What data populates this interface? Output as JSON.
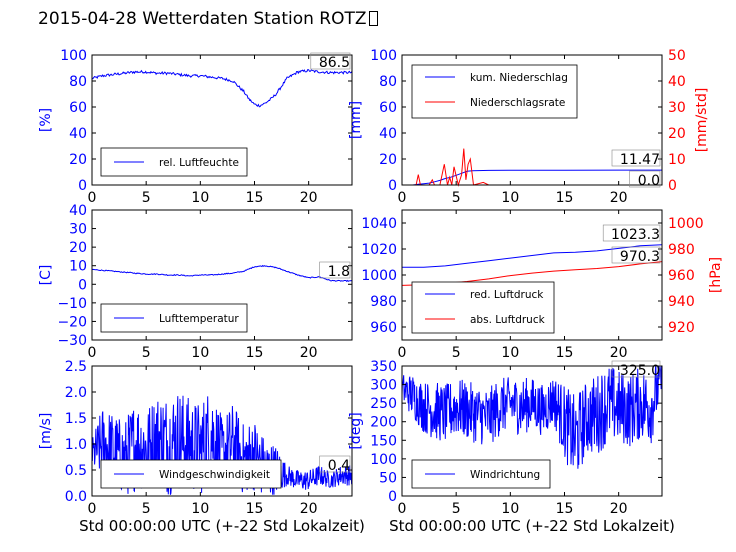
{
  "title": "2015-04-28 Wetterdaten Station ROTZ",
  "colors": {
    "blue": "#0000ff",
    "red": "#ff0000",
    "black": "#000000"
  },
  "chart_data": [
    {
      "type": "line",
      "ylabel": "[%]",
      "xlim": [
        0,
        24
      ],
      "ylim": [
        0,
        100
      ],
      "xticks": [
        "0",
        "5",
        "10",
        "15",
        "20"
      ],
      "yticks": [
        "0",
        "20",
        "40",
        "60",
        "80",
        "100"
      ],
      "series": [
        {
          "name": "rel. Luftfeuchte",
          "color": "#0000ff",
          "x": [
            0,
            1,
            2,
            3,
            4,
            5,
            6,
            7,
            8,
            9,
            10,
            11,
            12,
            13,
            14,
            14.5,
            15,
            15.5,
            16,
            16.5,
            17,
            18,
            19,
            20,
            21,
            22,
            23,
            24
          ],
          "y": [
            82,
            84,
            85,
            86,
            87,
            87,
            86,
            86,
            85,
            84,
            84,
            83,
            82,
            80,
            72,
            66,
            62,
            61,
            63,
            66,
            70,
            82,
            87,
            88,
            87,
            86.5,
            86.5,
            86.5
          ]
        }
      ],
      "last_value": "86.5"
    },
    {
      "type": "line",
      "ylabel": "[mm]",
      "y2label": "[mm/std]",
      "xlim": [
        0,
        24
      ],
      "ylim": [
        0,
        100
      ],
      "y2lim": [
        0,
        50
      ],
      "xticks": [
        "0",
        "5",
        "10",
        "15",
        "20"
      ],
      "yticks": [
        "0",
        "20",
        "40",
        "60",
        "80",
        "100"
      ],
      "y2ticks": [
        "0",
        "10",
        "20",
        "30",
        "40",
        "50"
      ],
      "series": [
        {
          "name": "kum. Niederschlag",
          "color": "#0000ff",
          "axis": "left",
          "x": [
            0,
            1,
            1.5,
            2,
            2.5,
            3,
            3.5,
            4,
            4.5,
            5,
            5.5,
            6,
            6.5,
            8,
            10,
            15,
            20,
            24
          ],
          "y": [
            0,
            0,
            0.5,
            1,
            1.5,
            2.5,
            3.5,
            5,
            6,
            7.5,
            9,
            10.5,
            11,
            11.2,
            11.3,
            11.4,
            11.47,
            11.47
          ]
        },
        {
          "name": "Niederschlagsrate",
          "color": "#ff0000",
          "axis": "right",
          "x": [
            0,
            1.3,
            1.5,
            1.7,
            2.5,
            2.8,
            3,
            3.5,
            3.9,
            4.2,
            4.4,
            4.6,
            4.8,
            5.2,
            5.5,
            5.7,
            5.9,
            6.1,
            6.3,
            6.6,
            7.5,
            8,
            9,
            24
          ],
          "y": [
            0,
            0,
            4,
            0,
            0,
            2,
            0,
            0,
            8,
            0,
            3,
            0,
            7,
            0,
            4,
            14,
            2,
            8,
            10,
            0,
            1,
            0,
            0,
            0
          ]
        }
      ],
      "last_value": "11.47",
      "last_value_2": "0.0"
    },
    {
      "type": "line",
      "ylabel": "[C]",
      "xlim": [
        0,
        24
      ],
      "ylim": [
        -30,
        40
      ],
      "xticks": [
        "0",
        "5",
        "10",
        "15",
        "20"
      ],
      "yticks": [
        "−30",
        "−20",
        "−10",
        "0",
        "10",
        "20",
        "30",
        "40"
      ],
      "series": [
        {
          "name": "Lufttemperatur",
          "color": "#0000ff",
          "x": [
            0,
            1,
            2,
            3,
            4,
            5,
            6,
            7,
            8,
            9,
            10,
            11,
            12,
            13,
            14,
            15,
            16,
            17,
            18,
            19,
            20,
            21,
            22,
            23,
            24
          ],
          "y": [
            8,
            7.5,
            7,
            6.5,
            6,
            5.5,
            5.5,
            5,
            5,
            4.5,
            5,
            5,
            5.5,
            6,
            7,
            9.5,
            10,
            9,
            7,
            5,
            3.5,
            4,
            2,
            1.8,
            1.8
          ]
        }
      ],
      "last_value": "1.8"
    },
    {
      "type": "line",
      "y2label": "[hPa]",
      "xlim": [
        0,
        24
      ],
      "ylim": [
        950,
        1050
      ],
      "y2lim": [
        910,
        1010
      ],
      "xticks": [
        "0",
        "5",
        "10",
        "15",
        "20"
      ],
      "yticks": [
        "960",
        "980",
        "1000",
        "1020",
        "1040"
      ],
      "y2ticks": [
        "920",
        "940",
        "960",
        "980",
        "1000"
      ],
      "series": [
        {
          "name": "red. Luftdruck",
          "color": "#0000ff",
          "axis": "left",
          "x": [
            0,
            2,
            4,
            6,
            8,
            10,
            12,
            14,
            16,
            18,
            20,
            22,
            24
          ],
          "y": [
            1006,
            1006,
            1007,
            1009,
            1011,
            1013,
            1015,
            1017,
            1017.5,
            1018.5,
            1020.5,
            1022.5,
            1023.3
          ]
        },
        {
          "name": "abs. Luftdruck",
          "color": "#ff0000",
          "axis": "right",
          "x": [
            0,
            2,
            4,
            6,
            8,
            10,
            12,
            14,
            16,
            18,
            20,
            22,
            24
          ],
          "y": [
            952,
            952.5,
            953.5,
            955,
            957,
            959.5,
            961.5,
            963,
            964,
            965,
            966.5,
            968.5,
            970.3
          ]
        }
      ],
      "last_value": "1023.3",
      "last_value_2": "970.3"
    },
    {
      "type": "line",
      "ylabel": "[m/s]",
      "xlabel": "Std 00:00:00 UTC (+-22 Std Lokalzeit)",
      "xlim": [
        0,
        24
      ],
      "ylim": [
        0,
        2.5
      ],
      "xticks": [
        "0",
        "5",
        "10",
        "15",
        "20"
      ],
      "yticks": [
        "0.0",
        "0.5",
        "1.0",
        "1.5",
        "2.0",
        "2.5"
      ],
      "series": [
        {
          "name": "Windgeschwindigkeit",
          "color": "#0000ff",
          "x": [
            0,
            1,
            2,
            3,
            4,
            5,
            6,
            7,
            8,
            9,
            10,
            11,
            12,
            13,
            14,
            15,
            16,
            17,
            18,
            19,
            20,
            21,
            22,
            23,
            24
          ],
          "y": [
            0.8,
            1.0,
            0.9,
            0.7,
            1.0,
            0.9,
            1.1,
            1.0,
            1.1,
            1.0,
            0.9,
            1.2,
            0.8,
            1.0,
            0.7,
            0.8,
            0.5,
            0.5,
            0.4,
            0.3,
            0.3,
            0.4,
            0.3,
            0.4,
            0.4
          ],
          "noise_band": [
            0.3,
            0.75,
            0.7,
            0.75,
            0.9,
            0.8,
            0.9,
            1.0,
            1.0,
            0.9,
            0.9,
            1.0,
            0.7,
            0.8,
            0.7,
            0.7,
            0.6,
            0.5,
            0.2,
            0.2,
            0.2,
            0.2,
            0.15,
            0.2,
            0.2
          ]
        }
      ],
      "last_value": "0.4"
    },
    {
      "type": "line",
      "ylabel": "[deg]",
      "xlabel": "Std 00:00:00 UTC (+-22 Std Lokalzeit)",
      "xlim": [
        0,
        24
      ],
      "ylim": [
        0,
        350
      ],
      "xticks": [
        "0",
        "5",
        "10",
        "15",
        "20"
      ],
      "yticks": [
        "0",
        "50",
        "100",
        "150",
        "200",
        "250",
        "300",
        "350"
      ],
      "series": [
        {
          "name": "Windrichtung",
          "color": "#0000ff",
          "x": [
            0,
            1,
            2,
            3,
            4,
            5,
            6,
            7,
            8,
            9,
            10,
            11,
            12,
            13,
            14,
            15,
            16,
            17,
            18,
            19,
            20,
            21,
            22,
            23,
            24
          ],
          "y": [
            290,
            270,
            240,
            230,
            220,
            240,
            230,
            220,
            210,
            240,
            250,
            240,
            250,
            230,
            260,
            200,
            150,
            210,
            220,
            250,
            240,
            230,
            250,
            240,
            325
          ],
          "noise_band": [
            40,
            60,
            70,
            80,
            80,
            80,
            80,
            80,
            80,
            80,
            70,
            80,
            70,
            70,
            70,
            100,
            120,
            100,
            110,
            110,
            100,
            100,
            100,
            100,
            60
          ]
        }
      ],
      "last_value": "325.0"
    }
  ]
}
